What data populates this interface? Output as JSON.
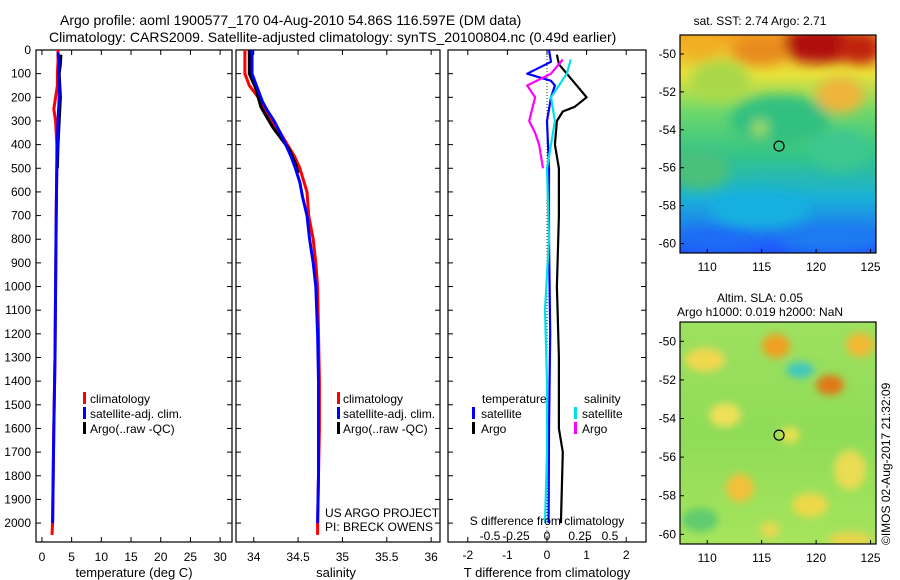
{
  "header": {
    "line1": "Argo profile: aoml 1900577_170 04-Aug-2010 54.86S 116.597E (DM data)",
    "line2": "Climatology: CARS2009. Satellite-adjusted climatology: synTS_20100804.nc (0.49d earlier)"
  },
  "colors": {
    "climatology": "#ff0000",
    "satellite": "#0000ff",
    "argo": "#000000",
    "sal_satellite": "#00e0e8",
    "sal_argo": "#ff00ff"
  },
  "icons": {
    "legend_marker": "colored-bar-marker"
  },
  "chart_data": [
    {
      "type": "line",
      "name": "temperature",
      "xlabel": "temperature (deg C)",
      "ylabel": "",
      "xlim": [
        -1,
        32
      ],
      "ylim": [
        2080,
        0
      ],
      "xticks": [
        0,
        5,
        10,
        15,
        20,
        25,
        30
      ],
      "yticks": [
        0,
        100,
        200,
        300,
        400,
        500,
        600,
        700,
        800,
        900,
        1000,
        1100,
        1200,
        1300,
        1400,
        1500,
        1600,
        1700,
        1800,
        1900,
        2000
      ],
      "legend": [
        "climatology",
        "satellite-adj. clim.",
        "Argo(..raw -QC)"
      ],
      "series": [
        {
          "name": "climatology",
          "points": [
            [
              2.7,
              0
            ],
            [
              2.7,
              50
            ],
            [
              2.6,
              100
            ],
            [
              2.6,
              150
            ],
            [
              2.3,
              200
            ],
            [
              2.0,
              250
            ],
            [
              2.3,
              300
            ],
            [
              2.5,
              400
            ],
            [
              2.5,
              500
            ],
            [
              2.4,
              700
            ],
            [
              2.3,
              1000
            ],
            [
              2.2,
              1300
            ],
            [
              2.0,
              1600
            ],
            [
              1.9,
              1800
            ],
            [
              1.8,
              2000
            ],
            [
              1.7,
              2050
            ]
          ]
        },
        {
          "name": "Argo(..raw -QC)",
          "points": [
            [
              3.2,
              20
            ],
            [
              3.1,
              60
            ],
            [
              2.9,
              100
            ],
            [
              3.0,
              150
            ],
            [
              3.1,
              200
            ],
            [
              3.0,
              250
            ],
            [
              2.9,
              300
            ],
            [
              2.7,
              400
            ],
            [
              2.6,
              500
            ]
          ]
        },
        {
          "name": "satellite-adj. clim.",
          "points": [
            [
              2.7,
              10
            ],
            [
              2.9,
              50
            ],
            [
              2.8,
              100
            ],
            [
              2.9,
              150
            ],
            [
              2.9,
              200
            ],
            [
              2.8,
              250
            ],
            [
              2.7,
              300
            ],
            [
              2.6,
              400
            ],
            [
              2.5,
              500
            ],
            [
              2.4,
              700
            ],
            [
              2.3,
              1000
            ],
            [
              2.2,
              1300
            ],
            [
              2.0,
              1600
            ],
            [
              1.9,
              1800
            ],
            [
              1.8,
              2000
            ]
          ]
        }
      ]
    },
    {
      "type": "line",
      "name": "salinity",
      "xlabel": "salinity",
      "xlim": [
        33.8,
        36.1
      ],
      "ylim": [
        2080,
        0
      ],
      "xticks": [
        34,
        34.5,
        35,
        35.5,
        36
      ],
      "legend": [
        "climatology",
        "satellite-adj. clim.",
        "Argo(..raw -QC)"
      ],
      "annotation": [
        "US ARGO PROJECT",
        "PI: BRECK OWENS"
      ],
      "series": [
        {
          "name": "climatology",
          "points": [
            [
              33.9,
              0
            ],
            [
              33.9,
              100
            ],
            [
              33.95,
              150
            ],
            [
              34.05,
              200
            ],
            [
              34.12,
              250
            ],
            [
              34.2,
              300
            ],
            [
              34.3,
              350
            ],
            [
              34.38,
              400
            ],
            [
              34.46,
              450
            ],
            [
              34.52,
              500
            ],
            [
              34.56,
              550
            ],
            [
              34.6,
              600
            ],
            [
              34.62,
              700
            ],
            [
              34.67,
              800
            ],
            [
              34.7,
              900
            ],
            [
              34.72,
              1000
            ],
            [
              34.73,
              1200
            ],
            [
              34.74,
              1400
            ],
            [
              34.74,
              1600
            ],
            [
              34.73,
              1800
            ],
            [
              34.72,
              2000
            ],
            [
              34.72,
              2050
            ]
          ]
        },
        {
          "name": "Argo(..raw -QC)",
          "points": [
            [
              33.95,
              0
            ],
            [
              33.95,
              100
            ],
            [
              34.02,
              160
            ],
            [
              34.05,
              200
            ],
            [
              34.08,
              240
            ],
            [
              34.14,
              280
            ],
            [
              34.22,
              330
            ],
            [
              34.32,
              380
            ],
            [
              34.4,
              420
            ],
            [
              34.47,
              480
            ],
            [
              34.5,
              520
            ]
          ]
        },
        {
          "name": "satellite-adj. clim.",
          "points": [
            [
              33.98,
              0
            ],
            [
              33.98,
              100
            ],
            [
              34.03,
              150
            ],
            [
              34.06,
              180
            ],
            [
              34.1,
              220
            ],
            [
              34.16,
              260
            ],
            [
              34.23,
              300
            ],
            [
              34.3,
              350
            ],
            [
              34.36,
              400
            ],
            [
              34.42,
              450
            ],
            [
              34.47,
              500
            ],
            [
              34.52,
              560
            ],
            [
              34.55,
              620
            ],
            [
              34.6,
              700
            ],
            [
              34.63,
              800
            ],
            [
              34.67,
              900
            ],
            [
              34.7,
              1000
            ],
            [
              34.72,
              1200
            ],
            [
              34.73,
              1400
            ],
            [
              34.73,
              1600
            ],
            [
              34.73,
              1800
            ],
            [
              34.72,
              2000
            ]
          ]
        }
      ]
    },
    {
      "type": "line",
      "name": "difference",
      "xlabel": "T difference from climatology",
      "xlim": [
        -2.5,
        2.5
      ],
      "ylim": [
        2080,
        0
      ],
      "xticks": [
        -2,
        -1,
        0,
        1,
        2
      ],
      "s_axis_title": "S difference from climatology",
      "s_ticks": [
        "-0.5",
        "-0.25",
        "0",
        "0.25",
        "0.5"
      ],
      "legend": {
        "temperature_header": "temperature",
        "salinity_header": "salinity",
        "items": [
          [
            "satellite",
            "satellite"
          ],
          [
            "Argo",
            "Argo"
          ]
        ]
      },
      "series": [
        {
          "name": "T satellite",
          "points": [
            [
              0.05,
              0
            ],
            [
              0.1,
              50
            ],
            [
              -0.5,
              100
            ],
            [
              0.1,
              130
            ],
            [
              0.2,
              150
            ],
            [
              0.1,
              200
            ],
            [
              0.0,
              300
            ],
            [
              0.05,
              500
            ],
            [
              0.05,
              800
            ],
            [
              0.08,
              1200
            ],
            [
              0.05,
              1600
            ],
            [
              0.04,
              2000
            ]
          ]
        },
        {
          "name": "T Argo",
          "points": [
            [
              0.25,
              20
            ],
            [
              0.3,
              60
            ],
            [
              0.5,
              100
            ],
            [
              0.8,
              160
            ],
            [
              1.0,
              200
            ],
            [
              0.7,
              240
            ],
            [
              0.4,
              260
            ],
            [
              0.25,
              300
            ],
            [
              0.2,
              400
            ],
            [
              0.25,
              450
            ],
            [
              0.3,
              500
            ],
            [
              0.3,
              700
            ],
            [
              0.25,
              1000
            ],
            [
              0.3,
              1300
            ],
            [
              0.3,
              1600
            ],
            [
              0.4,
              1700
            ],
            [
              0.35,
              2000
            ]
          ]
        },
        {
          "name": "S satellite",
          "points": [
            [
              0.6,
              40
            ],
            [
              0.5,
              100
            ],
            [
              0.3,
              150
            ],
            [
              0.1,
              200
            ],
            [
              0.2,
              300
            ],
            [
              0.1,
              400
            ],
            [
              0.0,
              500
            ],
            [
              0.05,
              800
            ],
            [
              -0.05,
              1100
            ],
            [
              0.0,
              1400
            ],
            [
              0.0,
              1700
            ],
            [
              -0.05,
              2000
            ]
          ]
        },
        {
          "name": "S Argo",
          "points": [
            [
              0.4,
              40
            ],
            [
              0.1,
              100
            ],
            [
              -0.5,
              150
            ],
            [
              -0.3,
              200
            ],
            [
              -0.45,
              300
            ],
            [
              -0.3,
              350
            ],
            [
              -0.2,
              400
            ],
            [
              -0.1,
              500
            ]
          ]
        }
      ]
    },
    {
      "type": "heatmap",
      "name": "sst-map",
      "title": "sat. SST: 2.74 Argo: 2.71",
      "xticks": [
        110,
        115,
        120,
        125
      ],
      "yticks": [
        -50,
        -52,
        -54,
        -56,
        -58,
        -60
      ],
      "xlim": [
        107.5,
        125.5
      ],
      "ylim": [
        -60.5,
        -49
      ],
      "profile_location": [
        116.597,
        -54.86
      ]
    },
    {
      "type": "heatmap",
      "name": "sla-map",
      "title_line1": "Altim. SLA: 0.05",
      "title_line2": "Argo h1000: 0.019 h2000: NaN",
      "xticks": [
        110,
        115,
        120,
        125
      ],
      "yticks": [
        -50,
        -52,
        -54,
        -56,
        -58,
        -60
      ],
      "xlim": [
        107.5,
        125.5
      ],
      "ylim": [
        -60.5,
        -49
      ],
      "profile_location": [
        116.597,
        -54.86
      ]
    }
  ],
  "footer_stamp": "©IMOS 02-Aug-2017 21:32:09"
}
